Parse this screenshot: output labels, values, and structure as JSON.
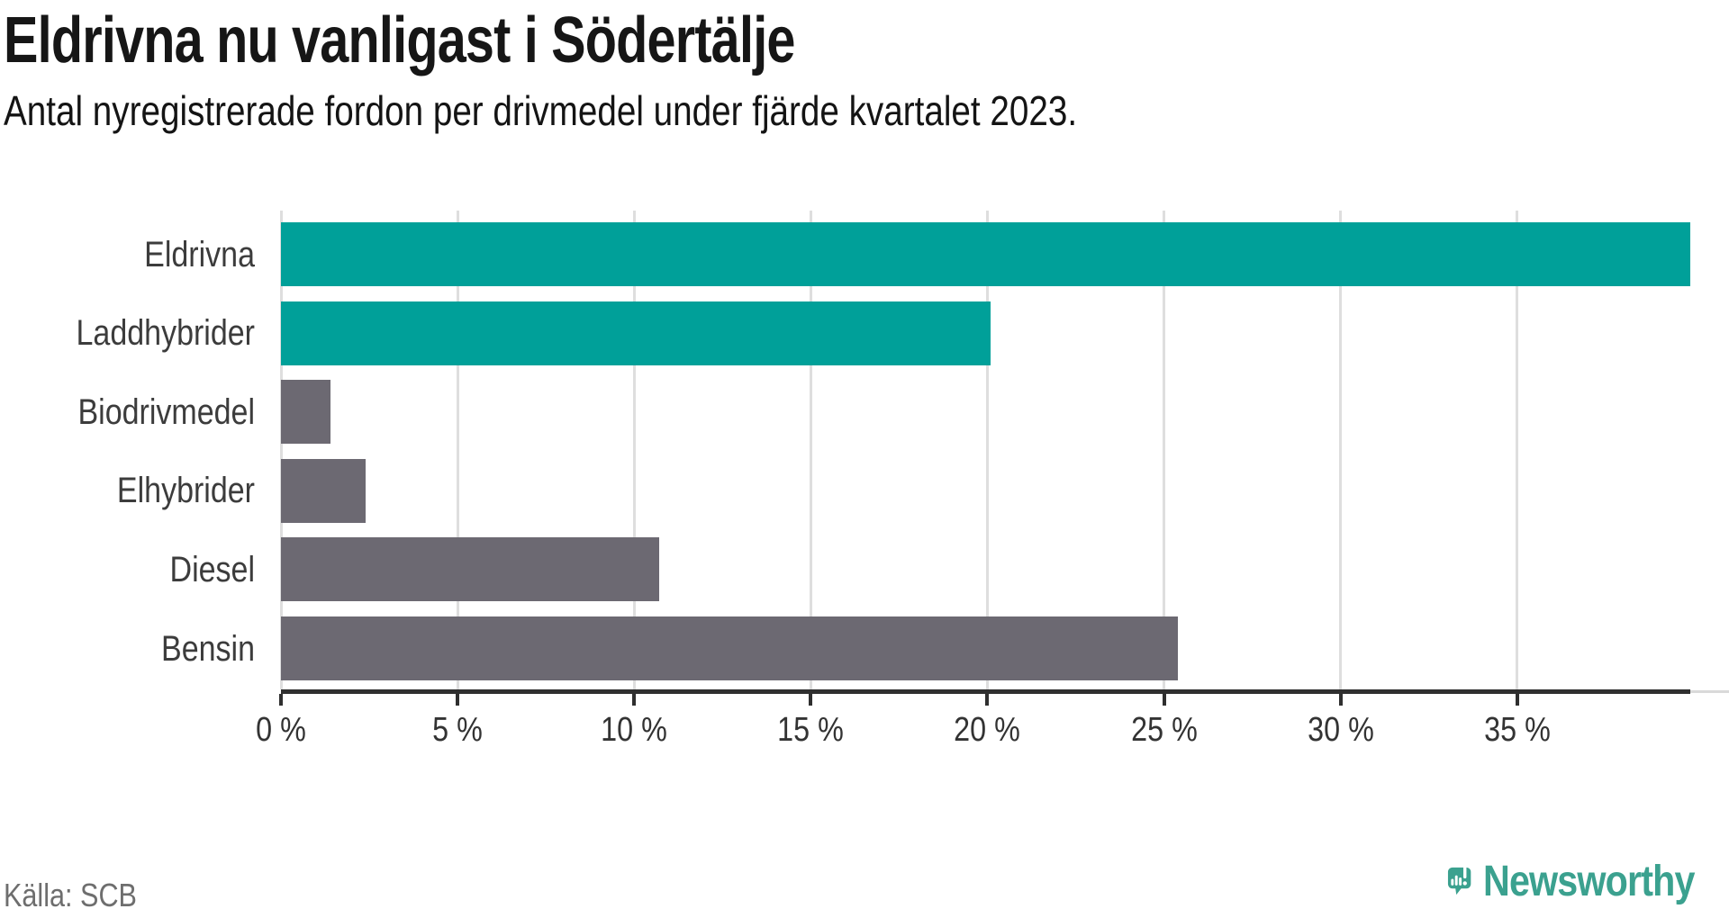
{
  "header": {
    "title": "Eldrivna nu vanligast i Södertälje",
    "subtitle": "Antal nyregistrerade fordon per drivmedel under fjärde kvartalet 2023."
  },
  "footer": {
    "source": "Källa: SCB",
    "brand_name": "Newsworthy"
  },
  "colors": {
    "highlight_teal": "#00a099",
    "neutral_gray": "#6c6972",
    "axis": "#2f2f2f",
    "gridline": "#dedede",
    "axis_extension": "#d9d9d9",
    "brand_teal": "#3ba18f",
    "row_label": "#3c3c3c",
    "tick_label": "#333333",
    "source_text": "#6e6e6e"
  },
  "chart_data": {
    "type": "bar",
    "orientation": "horizontal",
    "title": "Eldrivna nu vanligast i Södertälje",
    "subtitle": "Antal nyregistrerade fordon per drivmedel under fjärde kvartalet 2023.",
    "source": "Källa: SCB",
    "categories": [
      "Eldrivna",
      "Laddhybrider",
      "Biodrivmedel",
      "Elhybrider",
      "Diesel",
      "Bensin"
    ],
    "values": [
      39.9,
      20.1,
      1.4,
      2.4,
      10.7,
      25.4
    ],
    "unit": "%",
    "bar_colors": [
      "#00a099",
      "#00a099",
      "#6c6972",
      "#6c6972",
      "#6c6972",
      "#6c6972"
    ],
    "x_tick_values": [
      0,
      5,
      10,
      15,
      20,
      25,
      30,
      35
    ],
    "x_tick_labels": [
      "0 %",
      "5 %",
      "10 %",
      "15 %",
      "20 %",
      "25 %",
      "30 %",
      "35 %"
    ],
    "xlim": [
      0,
      39.9
    ],
    "grid": "vertical",
    "legend": "none"
  }
}
